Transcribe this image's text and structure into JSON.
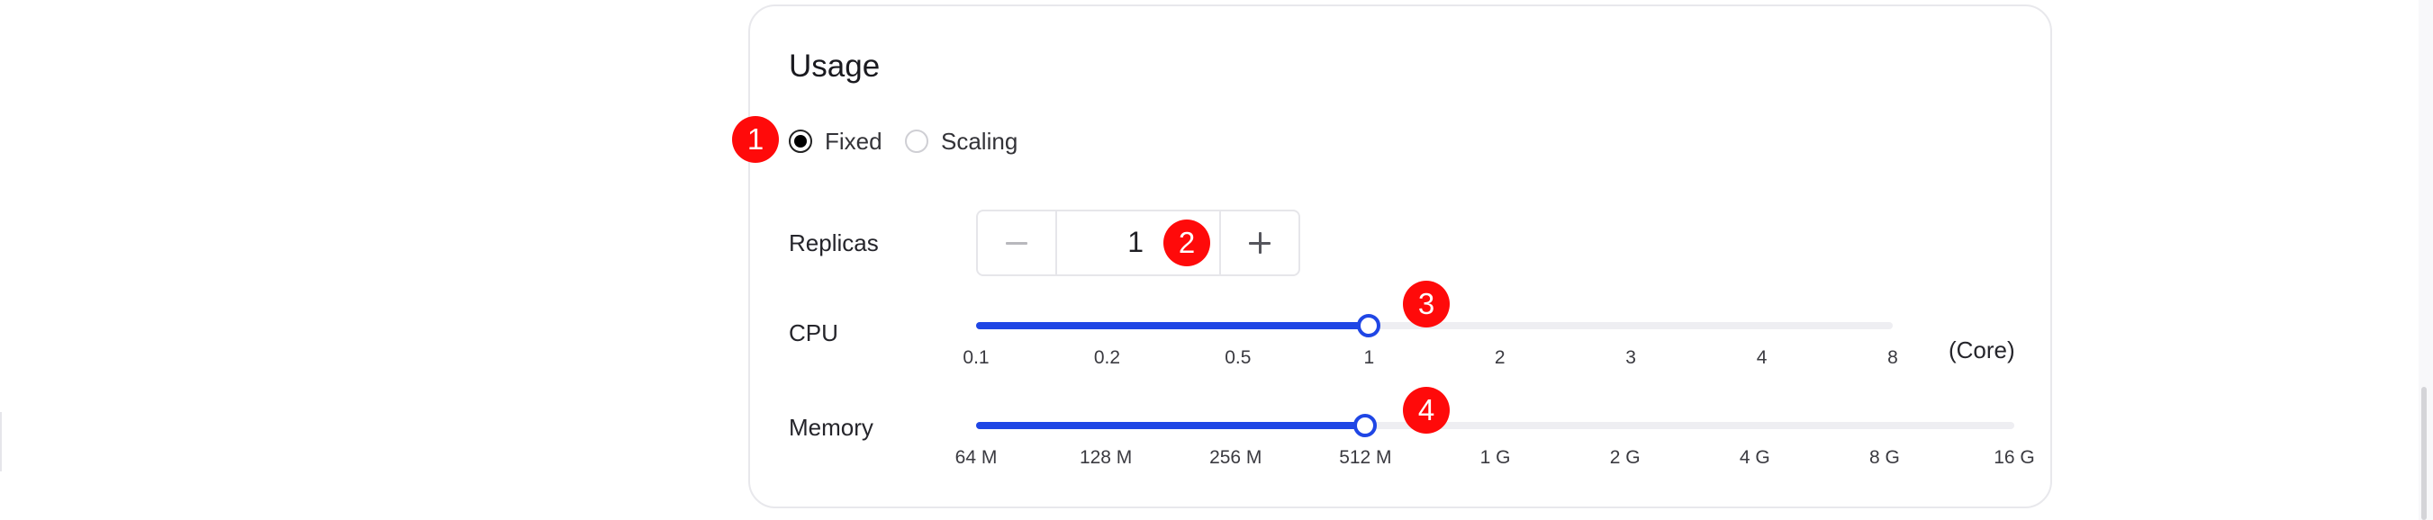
{
  "usage": {
    "title": "Usage",
    "mode_options": [
      {
        "label": "Fixed",
        "checked": true
      },
      {
        "label": "Scaling",
        "checked": false
      }
    ]
  },
  "replicas": {
    "label": "Replicas",
    "value": "1"
  },
  "cpu": {
    "label": "CPU",
    "unit": "(Core)",
    "ticks": [
      "0.1",
      "0.2",
      "0.5",
      "1",
      "2",
      "3",
      "4",
      "8"
    ],
    "selected": "1"
  },
  "memory": {
    "label": "Memory",
    "ticks": [
      "64 M",
      "128 M",
      "256 M",
      "512 M",
      "1 G",
      "2 G",
      "4 G",
      "8 G",
      "16 G"
    ],
    "selected": "512 M"
  },
  "annotations": [
    "1",
    "2",
    "3",
    "4"
  ],
  "colors": {
    "accent": "#1f46e5",
    "badge": "#ff0a0a",
    "track": "#eeeef2"
  }
}
